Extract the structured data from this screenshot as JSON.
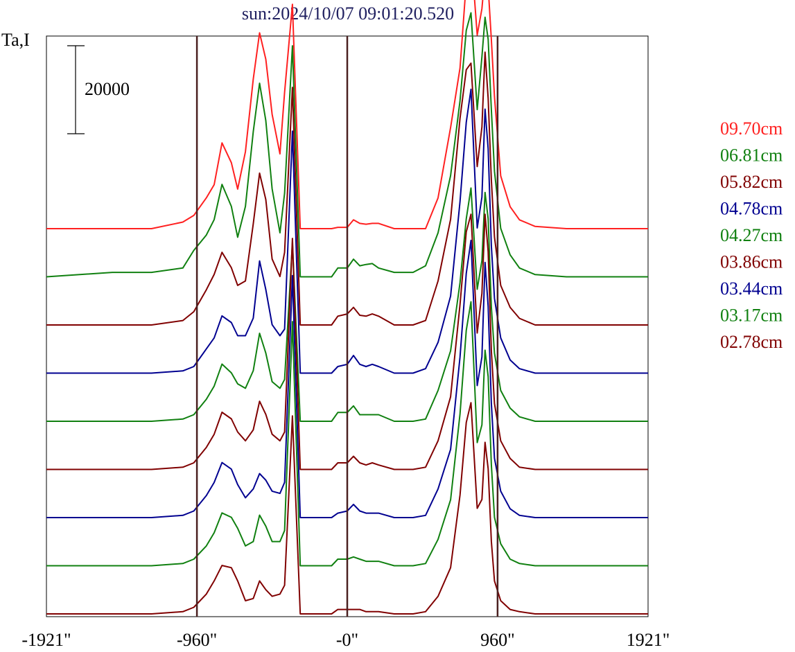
{
  "chart_data": {
    "type": "line",
    "title": "sun:2024/10/07 09:01:20.520",
    "ylabel": "Ta,I",
    "scale_bar_label": "20000",
    "scale_bar_value": 20000,
    "xlim": [
      -1921,
      1921
    ],
    "x_ticks": [
      {
        "value": -1921,
        "label": "-1921\""
      },
      {
        "value": -960,
        "label": "-960\""
      },
      {
        "value": 0,
        "label": "-0\""
      },
      {
        "value": 960,
        "label": "960\""
      },
      {
        "value": 1921,
        "label": "1921\""
      }
    ],
    "vertical_lines": [
      -960,
      0,
      960
    ],
    "grid": false,
    "legend_position": "right",
    "x": [
      -1921,
      -1500,
      -1250,
      -1050,
      -980,
      -900,
      -850,
      -800,
      -740,
      -700,
      -650,
      -600,
      -560,
      -520,
      -480,
      -430,
      -400,
      -350,
      -300,
      -250,
      -220,
      -200,
      -180,
      -160,
      -140,
      -120,
      -100,
      -60,
      0,
      40,
      80,
      120,
      160,
      200,
      300,
      420,
      500,
      580,
      660,
      720,
      760,
      790,
      830,
      860,
      880,
      900,
      920,
      940,
      980,
      1040,
      1100,
      1200,
      1400,
      1600,
      1921
    ],
    "series": [
      {
        "name": "09.70cm",
        "color": "#ff2020",
        "values": [
          0,
          0,
          0,
          1500,
          3000,
          7000,
          10000,
          19500,
          15000,
          9000,
          17500,
          34000,
          44500,
          38500,
          26000,
          17000,
          31000,
          51000,
          0,
          0,
          0,
          0,
          0,
          0,
          0,
          0,
          0,
          300,
          300,
          2000,
          1200,
          1000,
          1200,
          1200,
          0,
          0,
          0,
          7000,
          23000,
          36500,
          56000,
          63000,
          44000,
          50000,
          58000,
          55000,
          43000,
          30000,
          12000,
          5000,
          2000,
          500,
          0,
          0,
          0
        ]
      },
      {
        "name": "06.81cm",
        "color": "#108010",
        "values": [
          0,
          1000,
          1000,
          2000,
          6000,
          9500,
          13000,
          21000,
          16000,
          9000,
          16000,
          33000,
          44000,
          35500,
          20000,
          10000,
          19000,
          52500,
          0,
          0,
          0,
          0,
          0,
          0,
          0,
          0,
          0,
          2000,
          2000,
          4000,
          2500,
          2800,
          3000,
          2000,
          1000,
          1000,
          2500,
          10000,
          23000,
          40000,
          56000,
          60000,
          38000,
          50000,
          59000,
          54000,
          38000,
          24000,
          11000,
          5000,
          2000,
          500,
          0,
          0,
          0
        ]
      },
      {
        "name": "05.82cm",
        "color": "#800000",
        "values": [
          0,
          0,
          0,
          1000,
          3000,
          8000,
          11500,
          16500,
          13000,
          9000,
          10000,
          23000,
          34500,
          28500,
          15000,
          11000,
          16500,
          54000,
          0,
          0,
          0,
          0,
          0,
          0,
          0,
          0,
          0,
          2000,
          2500,
          4000,
          2200,
          2000,
          2500,
          2000,
          0,
          0,
          1000,
          10000,
          24000,
          47000,
          58000,
          59500,
          36000,
          45000,
          62000,
          51500,
          33000,
          20000,
          9000,
          4000,
          1500,
          0,
          0,
          0,
          0
        ]
      },
      {
        "name": "04.78cm",
        "color": "#000090",
        "values": [
          0,
          0,
          0,
          500,
          1500,
          5500,
          8000,
          13000,
          11500,
          8500,
          8500,
          12500,
          25500,
          19000,
          11000,
          8500,
          10000,
          55000,
          0,
          0,
          0,
          0,
          0,
          0,
          0,
          0,
          0,
          1500,
          2000,
          4000,
          2000,
          1500,
          2000,
          1500,
          0,
          0,
          1000,
          7000,
          17500,
          39000,
          57000,
          64500,
          33000,
          40000,
          60000,
          51000,
          29000,
          17000,
          8000,
          3000,
          1000,
          0,
          0,
          0,
          0
        ]
      },
      {
        "name": "04.27cm",
        "color": "#108010",
        "values": [
          0,
          0,
          0,
          500,
          1500,
          5000,
          8000,
          13000,
          11000,
          8500,
          7500,
          11500,
          20000,
          15500,
          9000,
          7500,
          9500,
          40500,
          0,
          0,
          0,
          0,
          0,
          0,
          0,
          0,
          0,
          2000,
          2000,
          3500,
          1500,
          1500,
          1500,
          1500,
          0,
          0,
          500,
          7000,
          16000,
          31500,
          46000,
          53000,
          30000,
          36500,
          52000,
          46000,
          26000,
          15500,
          7000,
          3000,
          1000,
          0,
          0,
          0,
          0
        ]
      },
      {
        "name": "03.86cm",
        "color": "#800000",
        "values": [
          0,
          0,
          0,
          500,
          1500,
          5000,
          8000,
          13000,
          11500,
          8500,
          6500,
          9000,
          15500,
          12500,
          8000,
          6500,
          8500,
          52500,
          0,
          0,
          0,
          0,
          0,
          0,
          0,
          0,
          0,
          1500,
          1500,
          3000,
          1500,
          1000,
          1500,
          1000,
          0,
          0,
          500,
          6500,
          16500,
          37500,
          54000,
          58000,
          31000,
          40000,
          58000,
          49500,
          27000,
          15000,
          6500,
          2500,
          500,
          0,
          0,
          0,
          0
        ]
      },
      {
        "name": "03.44cm",
        "color": "#000090",
        "values": [
          0,
          0,
          0,
          500,
          1500,
          5000,
          8000,
          12500,
          11000,
          7500,
          4500,
          6500,
          10000,
          8500,
          6000,
          5500,
          8000,
          55000,
          0,
          0,
          0,
          0,
          0,
          0,
          0,
          0,
          0,
          1000,
          1500,
          3000,
          1500,
          1000,
          1000,
          1000,
          0,
          0,
          500,
          6500,
          15500,
          36500,
          55500,
          63000,
          30000,
          36500,
          58000,
          48000,
          26000,
          13500,
          6000,
          2000,
          500,
          0,
          0,
          0,
          0
        ]
      },
      {
        "name": "03.17cm",
        "color": "#108010",
        "values": [
          0,
          0,
          0,
          500,
          1500,
          4500,
          7500,
          12000,
          11000,
          8500,
          4500,
          5500,
          11500,
          9000,
          5500,
          5500,
          8000,
          55500,
          0,
          0,
          0,
          0,
          0,
          0,
          0,
          0,
          0,
          1500,
          1500,
          2000,
          1500,
          1000,
          1000,
          1000,
          0,
          0,
          500,
          6000,
          15000,
          34500,
          53500,
          60000,
          28000,
          32000,
          49000,
          43000,
          23000,
          11000,
          5000,
          1500,
          500,
          0,
          0,
          0,
          0
        ]
      },
      {
        "name": "02.78cm",
        "color": "#800000",
        "values": [
          0,
          0,
          0,
          500,
          1500,
          4500,
          7500,
          11000,
          10500,
          7500,
          3000,
          3500,
          7500,
          5500,
          4000,
          4500,
          6500,
          45000,
          0,
          0,
          0,
          0,
          0,
          0,
          0,
          0,
          0,
          1000,
          1000,
          1000,
          1000,
          500,
          500,
          500,
          0,
          0,
          500,
          4000,
          10500,
          27000,
          43500,
          48000,
          24000,
          26000,
          39000,
          33000,
          16500,
          7500,
          3000,
          1000,
          500,
          0,
          0,
          0,
          0
        ]
      }
    ]
  }
}
